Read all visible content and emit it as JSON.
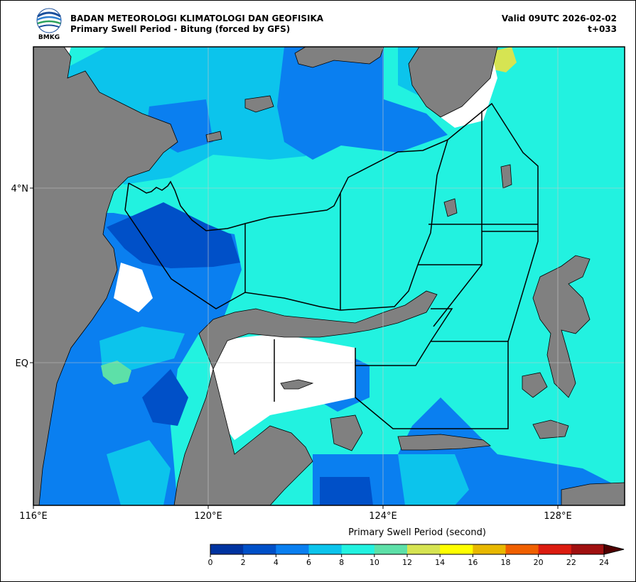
{
  "header": {
    "agency": "BADAN METEOROLOGI KLIMATOLOGI DAN GEOFISIKA",
    "product": "Primary Swell Period - Bitung (forced by GFS)",
    "valid": "Valid 09UTC 2026-02-02",
    "lead_time": "t+033",
    "logo_text": "BMKG"
  },
  "axes": {
    "x_ticks": [
      "116°E",
      "120°E",
      "124°E",
      "128°E"
    ],
    "y_ticks": [
      "4°N",
      "EQ"
    ]
  },
  "colorbar": {
    "title": "Primary Swell Period (second)",
    "ticks": [
      "0",
      "2",
      "4",
      "6",
      "8",
      "10",
      "12",
      "14",
      "16",
      "18",
      "20",
      "22",
      "24"
    ],
    "colors": [
      "#0033a0",
      "#0050c8",
      "#0a7ff0",
      "#0cc4ec",
      "#22f2e0",
      "#5de0a8",
      "#d6e452",
      "#ffff00",
      "#e8b800",
      "#f06000",
      "#dc1c10",
      "#a01010",
      "#500000"
    ]
  },
  "map_colors": {
    "land": "#808080",
    "no_data": "#ffffff"
  }
}
